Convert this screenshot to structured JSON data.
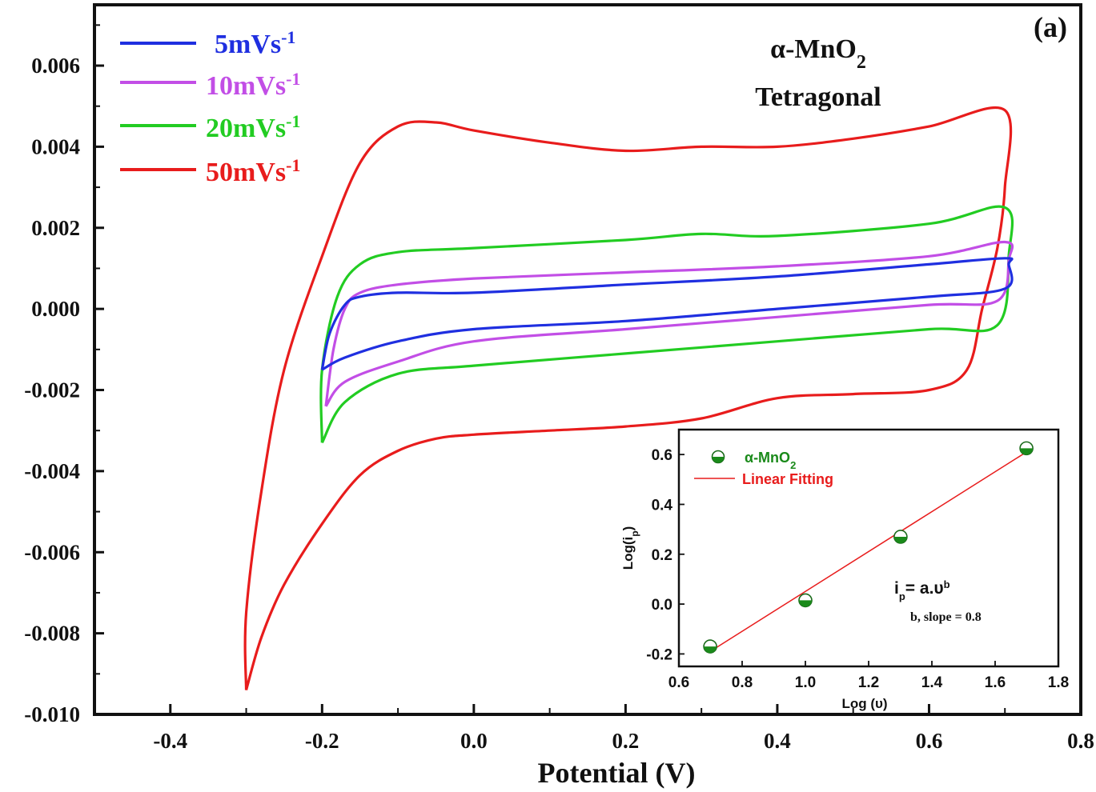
{
  "chart_data": [
    {
      "type": "line",
      "title": "",
      "panel_label": "(a)",
      "annotation": {
        "material_prefix": "α-MnO",
        "material_sub": "2",
        "phase": "Tetragonal"
      },
      "xlabel": "Potential (V)",
      "ylabel": "",
      "xlim": [
        -0.5,
        0.8
      ],
      "ylim": [
        -0.01,
        0.0075
      ],
      "xticks": [
        -0.4,
        -0.2,
        0.0,
        0.2,
        0.4,
        0.6,
        0.8
      ],
      "xtick_labels": [
        "-0.4",
        "-0.2",
        "0.0",
        "0.2",
        "0.4",
        "0.6",
        "0.8"
      ],
      "yticks": [
        0.006,
        0.004,
        0.002,
        0.0,
        -0.002,
        -0.004,
        -0.006,
        -0.008,
        -0.01
      ],
      "ytick_labels": [
        "0.006",
        "0.004",
        "0.002",
        "0.000",
        "-0.002",
        "-0.004",
        "-0.006",
        "-0.008",
        "-0.010"
      ],
      "grid": false,
      "legend_position": "top-left",
      "series": [
        {
          "name": "5mVs-1",
          "label_base": "5mVs",
          "label_sup": "-1",
          "color": "#1f2fe0",
          "points": [
            [
              -0.2,
              -0.0015
            ],
            [
              -0.19,
              -0.0006
            ],
            [
              -0.17,
              0.0001
            ],
            [
              -0.15,
              0.0003
            ],
            [
              -0.1,
              0.0004
            ],
            [
              0.0,
              0.0004
            ],
            [
              0.2,
              0.0006
            ],
            [
              0.4,
              0.0008
            ],
            [
              0.6,
              0.0011
            ],
            [
              0.7,
              0.00125
            ],
            [
              0.705,
              0.0011
            ],
            [
              0.7,
              0.0005
            ],
            [
              0.6,
              0.0003
            ],
            [
              0.4,
              0.0
            ],
            [
              0.2,
              -0.0003
            ],
            [
              0.0,
              -0.0005
            ],
            [
              -0.1,
              -0.0008
            ],
            [
              -0.17,
              -0.0012
            ],
            [
              -0.2,
              -0.0015
            ]
          ]
        },
        {
          "name": "10mVs-1",
          "label_base": "10mVs",
          "label_sup": "-1",
          "color": "#c24ee6",
          "points": [
            [
              -0.195,
              -0.0024
            ],
            [
              -0.185,
              -0.001
            ],
            [
              -0.17,
              0.0
            ],
            [
              -0.15,
              0.0004
            ],
            [
              -0.1,
              0.0006
            ],
            [
              0.0,
              0.00075
            ],
            [
              0.2,
              0.0009
            ],
            [
              0.4,
              0.00105
            ],
            [
              0.6,
              0.0013
            ],
            [
              0.7,
              0.00165
            ],
            [
              0.705,
              0.0012
            ],
            [
              0.69,
              0.0002
            ],
            [
              0.6,
              0.0001
            ],
            [
              0.4,
              -0.0002
            ],
            [
              0.2,
              -0.0005
            ],
            [
              0.0,
              -0.0008
            ],
            [
              -0.1,
              -0.0013
            ],
            [
              -0.17,
              -0.0018
            ],
            [
              -0.195,
              -0.0024
            ]
          ]
        },
        {
          "name": "20mVs-1",
          "label_base": "20mVs",
          "label_sup": "-1",
          "color": "#22cc22",
          "points": [
            [
              -0.2,
              -0.0033
            ],
            [
              -0.2,
              -0.0015
            ],
            [
              -0.18,
              0.0003
            ],
            [
              -0.15,
              0.0011
            ],
            [
              -0.1,
              0.0014
            ],
            [
              0.0,
              0.0015
            ],
            [
              0.2,
              0.0017
            ],
            [
              0.3,
              0.00185
            ],
            [
              0.4,
              0.0018
            ],
            [
              0.6,
              0.0021
            ],
            [
              0.7,
              0.0025
            ],
            [
              0.705,
              0.0013
            ],
            [
              0.69,
              -0.0004
            ],
            [
              0.6,
              -0.0005
            ],
            [
              0.4,
              -0.0008
            ],
            [
              0.2,
              -0.0011
            ],
            [
              0.0,
              -0.0014
            ],
            [
              -0.1,
              -0.0016
            ],
            [
              -0.17,
              -0.0023
            ],
            [
              -0.2,
              -0.0033
            ]
          ]
        },
        {
          "name": "50mVs-1",
          "label_base": "50mVs",
          "label_sup": "-1",
          "color": "#e81c1c",
          "points": [
            [
              -0.3,
              -0.0094
            ],
            [
              -0.3,
              -0.0075
            ],
            [
              -0.28,
              -0.0045
            ],
            [
              -0.25,
              -0.0015
            ],
            [
              -0.2,
              0.0013
            ],
            [
              -0.15,
              0.0036
            ],
            [
              -0.1,
              0.0045
            ],
            [
              -0.05,
              0.0046
            ],
            [
              0.0,
              0.0044
            ],
            [
              0.1,
              0.0041
            ],
            [
              0.2,
              0.0039
            ],
            [
              0.3,
              0.004
            ],
            [
              0.4,
              0.004
            ],
            [
              0.5,
              0.0042
            ],
            [
              0.6,
              0.0045
            ],
            [
              0.7,
              0.0049
            ],
            [
              0.7,
              0.003
            ],
            [
              0.69,
              0.0015
            ],
            [
              0.67,
              0.0
            ],
            [
              0.65,
              -0.0015
            ],
            [
              0.6,
              -0.002
            ],
            [
              0.5,
              -0.0021
            ],
            [
              0.4,
              -0.0022
            ],
            [
              0.3,
              -0.0027
            ],
            [
              0.2,
              -0.0029
            ],
            [
              0.1,
              -0.003
            ],
            [
              0.0,
              -0.0031
            ],
            [
              -0.05,
              -0.0032
            ],
            [
              -0.1,
              -0.0035
            ],
            [
              -0.15,
              -0.0041
            ],
            [
              -0.2,
              -0.0053
            ],
            [
              -0.25,
              -0.0068
            ],
            [
              -0.28,
              -0.0081
            ],
            [
              -0.3,
              -0.0094
            ]
          ]
        }
      ]
    },
    {
      "type": "scatter",
      "title": "",
      "xlabel": "Log (υ)",
      "ylabel_base": "Log(i",
      "ylabel_sub": "p",
      "ylabel_end": ")",
      "xlim": [
        0.6,
        1.8
      ],
      "ylim": [
        -0.25,
        0.7
      ],
      "xticks": [
        0.6,
        0.8,
        1.0,
        1.2,
        1.4,
        1.6,
        1.8
      ],
      "xtick_labels": [
        "0.6",
        "0.8",
        "1.0",
        "1.2",
        "1.4",
        "1.6",
        "1.8"
      ],
      "yticks": [
        0.6,
        0.4,
        0.2,
        0.0,
        -0.2
      ],
      "ytick_labels": [
        "0.6",
        "0.4",
        "0.2",
        "0.0",
        "-0.2"
      ],
      "grid": false,
      "legend_position": "top-left",
      "series": [
        {
          "name": "α-MnO2",
          "label_base": "α-MnO",
          "label_sub": "2",
          "color": "#1a8a1a",
          "x": [
            0.699,
            1.0,
            1.301,
            1.699
          ],
          "y": [
            -0.17,
            0.015,
            0.27,
            0.625
          ]
        },
        {
          "name": "Linear Fitting",
          "label": "Linear Fitting",
          "color": "#e81c1c",
          "fit": [
            [
              0.699,
              -0.19
            ],
            [
              1.699,
              0.61
            ]
          ]
        }
      ],
      "equation": {
        "i": "i",
        "p": "p",
        "rest": "= a.υ",
        "b": "b"
      },
      "slope_note": "b, slope = 0.8"
    }
  ]
}
